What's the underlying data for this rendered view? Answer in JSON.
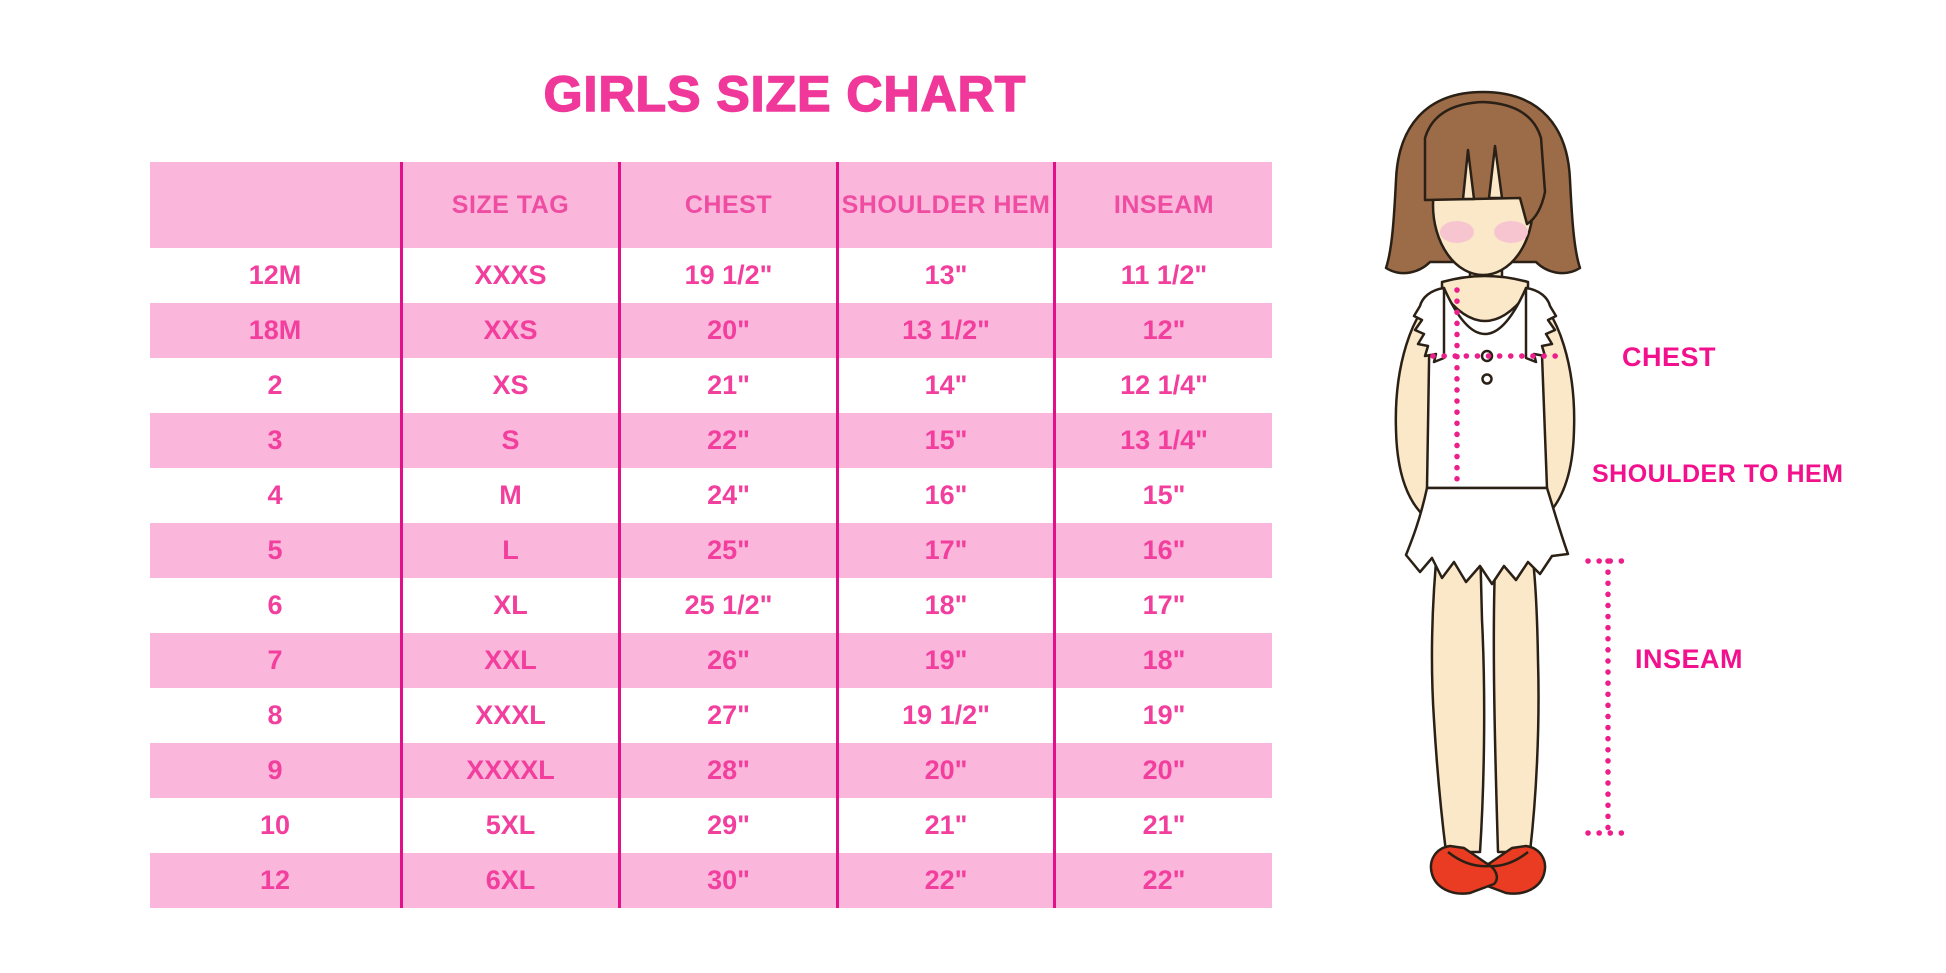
{
  "page": {
    "title": "GIRLS SIZE CHART"
  },
  "chart_data": {
    "type": "table",
    "title": "GIRLS SIZE CHART",
    "columns": [
      "",
      "SIZE TAG",
      "CHEST",
      "SHOULDER HEM",
      "INSEAM"
    ],
    "rows": [
      [
        "12M",
        "XXXS",
        "19 1/2\"",
        "13\"",
        "11 1/2\""
      ],
      [
        "18M",
        "XXS",
        "20\"",
        "13 1/2\"",
        "12\""
      ],
      [
        "2",
        "XS",
        "21\"",
        "14\"",
        "12 1/4\""
      ],
      [
        "3",
        "S",
        "22\"",
        "15\"",
        "13 1/4\""
      ],
      [
        "4",
        "M",
        "24\"",
        "16\"",
        "15\""
      ],
      [
        "5",
        "L",
        "25\"",
        "17\"",
        "16\""
      ],
      [
        "6",
        "XL",
        "25 1/2\"",
        "18\"",
        "17\""
      ],
      [
        "7",
        "XXL",
        "26\"",
        "19\"",
        "18\""
      ],
      [
        "8",
        "XXXL",
        "27\"",
        "19 1/2\"",
        "19\""
      ],
      [
        "9",
        "XXXXL",
        "28\"",
        "20\"",
        "20\""
      ],
      [
        "10",
        "5XL",
        "29\"",
        "21\"",
        "21\""
      ],
      [
        "12",
        "6XL",
        "30\"",
        "22\"",
        "22\""
      ]
    ],
    "row_stripe_pattern": "white/pink alternating, header pink",
    "legend_position": "none"
  },
  "diagram": {
    "labels": {
      "chest": "CHEST",
      "shoulder_to_hem": "SHOULDER TO HEM",
      "inseam": "INSEAM"
    }
  },
  "colors": {
    "title_pink": "#f0389b",
    "row_pink": "#fbb6db",
    "divider_magenta": "#e2118a",
    "cell_text_pink": "#f23f9e",
    "label_magenta": "#f2108d",
    "dotted_line_magenta": "#ec1e8a",
    "hair_brown": "#9c6b48",
    "skin": "#fae8c8",
    "blush": "#f6c5d0",
    "shoe_red": "#e93c22",
    "outline_dark": "#2a2016"
  }
}
